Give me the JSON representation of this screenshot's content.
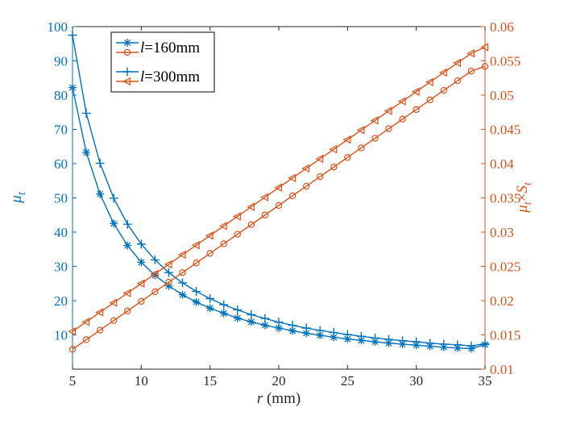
{
  "chart_data": {
    "type": "line",
    "xlabel": "r (mm)",
    "ylabel_left": "μt",
    "ylabel_right": "μt×St",
    "xlim": [
      5,
      35
    ],
    "ylim_left": [
      0,
      100
    ],
    "ylim_right": [
      0.01,
      0.06
    ],
    "xticks": [
      5,
      10,
      15,
      20,
      25,
      30,
      35
    ],
    "yticks_left": [
      10,
      20,
      30,
      40,
      50,
      60,
      70,
      80,
      90,
      100
    ],
    "yticks_right": [
      0.01,
      0.015,
      0.02,
      0.025,
      0.03,
      0.035,
      0.04,
      0.045,
      0.05,
      0.055,
      0.06
    ],
    "grid": false,
    "legend_position": "top-left",
    "legend": [
      {
        "label": "l=160mm",
        "italic_prefix": "l",
        "rest": "=160mm",
        "entries": [
          "μt (left axis, * marker)",
          "μt×St (right axis, o marker)"
        ]
      },
      {
        "label": "l=300mm",
        "italic_prefix": "l",
        "rest": "=300mm",
        "entries": [
          "μt (left axis, + marker)",
          "μt×St (right axis, ◁ marker)"
        ]
      }
    ],
    "x": [
      5,
      6,
      7,
      8,
      9,
      10,
      11,
      12,
      13,
      14,
      15,
      16,
      17,
      18,
      19,
      20,
      21,
      22,
      23,
      24,
      25,
      26,
      27,
      28,
      29,
      30,
      31,
      32,
      33,
      34,
      35
    ],
    "series": [
      {
        "group": "l=160mm",
        "axis": "left",
        "marker": "asterisk",
        "color": "#0072BD",
        "values": [
          82.2,
          63.3,
          51.1,
          42.5,
          36.1,
          31.2,
          27.4,
          24.3,
          21.7,
          19.6,
          17.8,
          16.3,
          14.9,
          13.8,
          12.8,
          12.0,
          11.2,
          10.5,
          9.9,
          9.3,
          8.8,
          8.4,
          8.0,
          7.6,
          7.3,
          7.0,
          6.7,
          6.4,
          6.2,
          6.0,
          7.2
        ]
      },
      {
        "group": "l=300mm",
        "axis": "left",
        "marker": "plus",
        "color": "#0072BD",
        "values": [
          97.5,
          74.7,
          60.1,
          49.9,
          42.3,
          36.5,
          31.9,
          28.2,
          25.2,
          22.7,
          20.6,
          18.8,
          17.3,
          15.9,
          14.8,
          13.7,
          12.8,
          12.0,
          11.3,
          10.7,
          10.1,
          9.6,
          9.1,
          8.7,
          8.3,
          8.0,
          7.6,
          7.3,
          7.1,
          6.8,
          7.4
        ]
      },
      {
        "group": "l=160mm",
        "axis": "right",
        "marker": "circle",
        "color": "#D95319",
        "values": [
          0.0129,
          0.0143,
          0.0157,
          0.0171,
          0.0185,
          0.0199,
          0.0213,
          0.0227,
          0.0241,
          0.0255,
          0.0269,
          0.0283,
          0.0297,
          0.0311,
          0.0325,
          0.0339,
          0.0353,
          0.0367,
          0.0381,
          0.0395,
          0.0409,
          0.0423,
          0.0437,
          0.0451,
          0.0465,
          0.0479,
          0.0493,
          0.0507,
          0.0521,
          0.0535,
          0.0542
        ]
      },
      {
        "group": "l=300mm",
        "axis": "right",
        "marker": "triangle-left",
        "color": "#D95319",
        "values": [
          0.0155,
          0.0169,
          0.0183,
          0.0197,
          0.0211,
          0.0225,
          0.0239,
          0.0253,
          0.0267,
          0.0281,
          0.0295,
          0.0309,
          0.0323,
          0.0337,
          0.0351,
          0.0365,
          0.0379,
          0.0393,
          0.0407,
          0.0421,
          0.0435,
          0.0449,
          0.0463,
          0.0477,
          0.0491,
          0.0505,
          0.0519,
          0.0533,
          0.0547,
          0.0561,
          0.057
        ]
      }
    ]
  }
}
